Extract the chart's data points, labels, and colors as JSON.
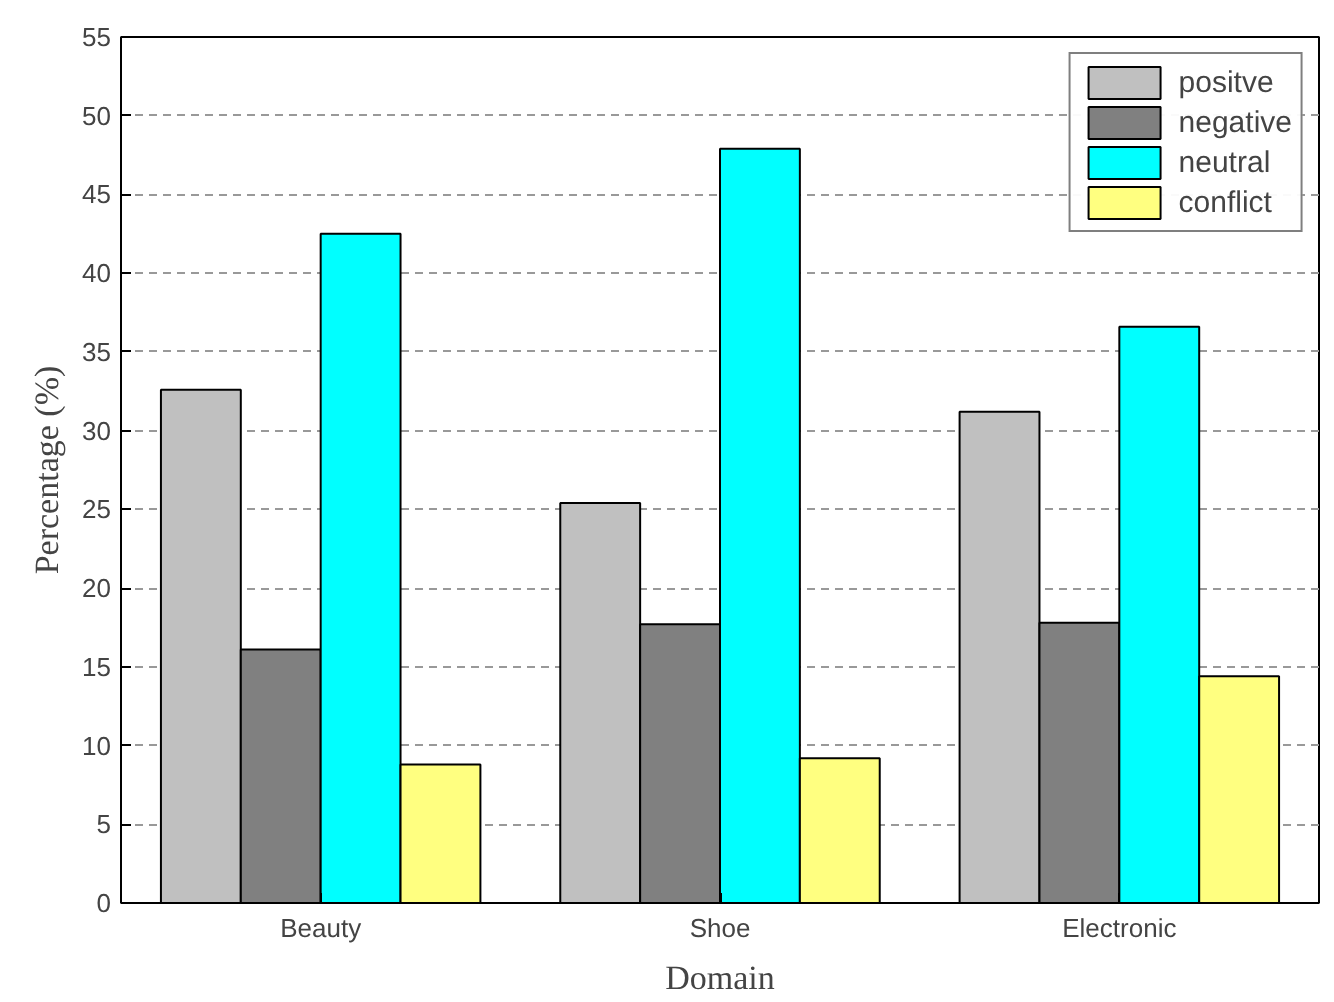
{
  "chart_data": {
    "type": "bar",
    "xlabel": "Domain",
    "ylabel": "Percentage (%)",
    "categories": [
      "Beauty",
      "Shoe",
      "Electronic"
    ],
    "series": [
      {
        "name": "positve",
        "color": "#c0c0c0",
        "values": [
          32.6,
          25.4,
          31.2
        ]
      },
      {
        "name": "negative",
        "color": "#808080",
        "values": [
          16.1,
          17.7,
          17.8
        ]
      },
      {
        "name": "neutral",
        "color": "#00ffff",
        "values": [
          42.5,
          47.9,
          36.6
        ]
      },
      {
        "name": "conflict",
        "color": "#ffff80",
        "values": [
          8.8,
          9.2,
          14.4
        ]
      }
    ],
    "ylim": [
      0,
      55
    ],
    "yticks": [
      0,
      5,
      10,
      15,
      20,
      25,
      30,
      35,
      40,
      45,
      50,
      55
    ],
    "grid": "y",
    "legend": "top right"
  }
}
